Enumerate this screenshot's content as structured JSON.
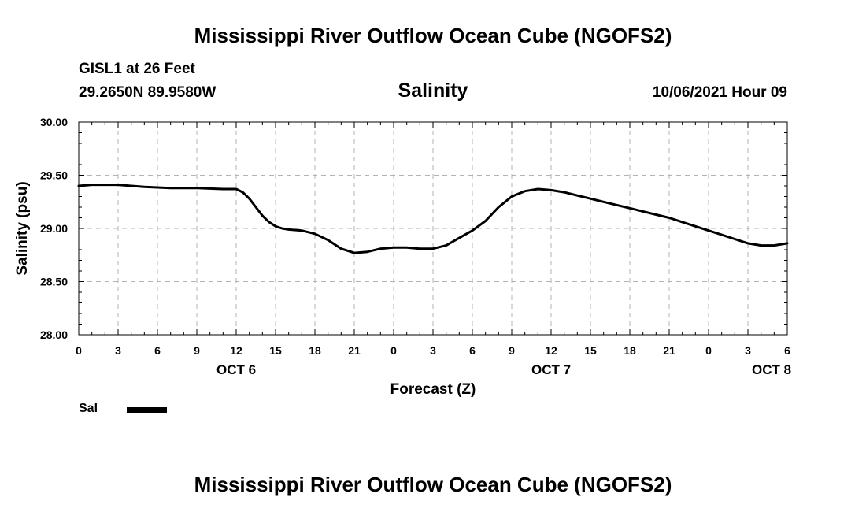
{
  "header": {
    "title_top": "Mississippi River Outflow Ocean Cube (NGOFS2)",
    "title_bottom": "Mississippi River Outflow Ocean Cube (NGOFS2)",
    "station": "GISL1 at 26 Feet",
    "coords": "29.2650N  89.9580W",
    "datetime": "10/06/2021 Hour 09"
  },
  "chart_data": {
    "type": "line",
    "title": "Salinity",
    "xlabel": "Forecast (Z)",
    "ylabel": "Salinity (psu)",
    "ylim": [
      28.0,
      30.0
    ],
    "xlim": [
      0,
      54
    ],
    "grid": true,
    "y_ticks": [
      "28.00",
      "28.50",
      "29.00",
      "29.50",
      "30.00"
    ],
    "x_ticks": [
      "0",
      "3",
      "6",
      "9",
      "12",
      "15",
      "18",
      "21",
      "0",
      "3",
      "6",
      "9",
      "12",
      "15",
      "18",
      "21",
      "0",
      "3",
      "6"
    ],
    "date_labels": [
      {
        "label": "OCT 6",
        "hour": 12
      },
      {
        "label": "OCT 7",
        "hour": 36
      },
      {
        "label": "OCT 8",
        "hour": 52.8
      }
    ],
    "x_unit": "hours since 10/06/2021 00Z",
    "series": [
      {
        "name": "Sal",
        "x": [
          0,
          1,
          2,
          3,
          4,
          5,
          6,
          7,
          8,
          9,
          10,
          11,
          12,
          12.5,
          13,
          13.5,
          14,
          14.5,
          15,
          15.5,
          16,
          17,
          18,
          19,
          20,
          21,
          22,
          23,
          24,
          25,
          26,
          27,
          28,
          29,
          30,
          31,
          32,
          33,
          34,
          35,
          36,
          37,
          38,
          39,
          40,
          41,
          42,
          43,
          44,
          45,
          46,
          47,
          48,
          49,
          50,
          51,
          52,
          53,
          54
        ],
        "values": [
          29.4,
          29.41,
          29.41,
          29.41,
          29.4,
          29.39,
          29.385,
          29.38,
          29.38,
          29.38,
          29.375,
          29.37,
          29.37,
          29.34,
          29.28,
          29.2,
          29.12,
          29.06,
          29.02,
          29.0,
          28.99,
          28.98,
          28.95,
          28.89,
          28.81,
          28.77,
          28.78,
          28.81,
          28.82,
          28.82,
          28.81,
          28.81,
          28.84,
          28.91,
          28.98,
          29.07,
          29.2,
          29.3,
          29.35,
          29.37,
          29.36,
          29.34,
          29.31,
          29.28,
          29.25,
          29.22,
          29.19,
          29.16,
          29.13,
          29.1,
          29.06,
          29.02,
          28.98,
          28.94,
          28.9,
          28.86,
          28.84,
          28.84,
          28.86
        ]
      }
    ],
    "colors": {
      "line": "#000000",
      "grid": "#b3b3b3"
    }
  },
  "legend": {
    "items": [
      {
        "label": "Sal",
        "color": "#000000"
      }
    ]
  }
}
